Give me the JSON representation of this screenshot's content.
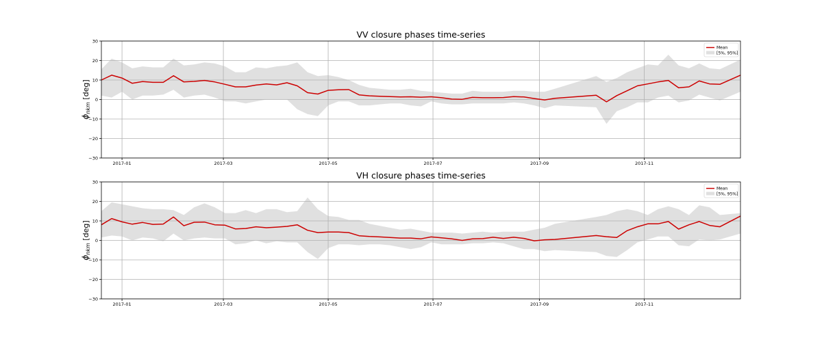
{
  "chart_data": [
    {
      "type": "line",
      "title": "VV closure phases time-series",
      "ylabel": "ϕnkm [deg]",
      "ylabel_main": "ϕ",
      "ylabel_sub": "nkm",
      "ylabel_rest": " [deg]",
      "ylim": [
        -30,
        30
      ],
      "yticks": [
        -30,
        -20,
        -10,
        0,
        10,
        20,
        30
      ],
      "xlim": [
        "2016-12-20",
        "2017-12-27"
      ],
      "xticks": [
        "2017-01",
        "2017-03",
        "2017-05",
        "2017-07",
        "2017-09",
        "2017-11"
      ],
      "grid": true,
      "legend_position": "top-right",
      "legend": [
        "Mean",
        "[5%, 95%]"
      ],
      "colors": {
        "mean": "#cc0000",
        "band": "#e0e0e0"
      },
      "x": [
        "2016-12-20",
        "2016-12-26",
        "2017-01-01",
        "2017-01-07",
        "2017-01-13",
        "2017-01-19",
        "2017-01-25",
        "2017-01-31",
        "2017-02-06",
        "2017-02-12",
        "2017-02-18",
        "2017-02-24",
        "2017-03-02",
        "2017-03-08",
        "2017-03-14",
        "2017-03-20",
        "2017-03-26",
        "2017-04-01",
        "2017-04-07",
        "2017-04-13",
        "2017-04-19",
        "2017-04-25",
        "2017-05-01",
        "2017-05-07",
        "2017-05-13",
        "2017-05-19",
        "2017-05-25",
        "2017-05-31",
        "2017-06-06",
        "2017-06-12",
        "2017-06-18",
        "2017-06-24",
        "2017-06-30",
        "2017-07-06",
        "2017-07-12",
        "2017-07-18",
        "2017-07-24",
        "2017-07-30",
        "2017-08-05",
        "2017-08-11",
        "2017-08-17",
        "2017-08-23",
        "2017-08-29",
        "2017-09-04",
        "2017-09-10",
        "2017-10-04",
        "2017-10-10",
        "2017-10-16",
        "2017-10-22",
        "2017-10-28",
        "2017-11-03",
        "2017-11-09",
        "2017-11-15",
        "2017-11-21",
        "2017-11-27",
        "2017-12-03",
        "2017-12-09",
        "2017-12-15",
        "2017-12-27"
      ],
      "series": [
        {
          "name": "Mean",
          "values": [
            10,
            12.5,
            11,
            8.3,
            9.2,
            8.8,
            8.8,
            12.2,
            9,
            9.3,
            9.8,
            9,
            7.8,
            6.5,
            6.5,
            7.4,
            8,
            7.5,
            8.6,
            7,
            3.5,
            2.8,
            4.7,
            5,
            5.1,
            2.4,
            1.9,
            1.7,
            1.5,
            1.3,
            1.4,
            1.2,
            1.4,
            0.9,
            0.2,
            0.1,
            1.1,
            0.9,
            0.9,
            1,
            1.5,
            1.3,
            0.5,
            -0.2,
            0.6,
            2.2,
            -1.2,
            2,
            4.5,
            7,
            8,
            9,
            9.8,
            6,
            6.5,
            9.5,
            8,
            7.8,
            12.5
          ]
        },
        {
          "name": "[5%, 95%]",
          "upper": [
            15.5,
            21,
            19,
            16,
            17,
            16.5,
            16.5,
            21,
            17.5,
            18,
            19,
            18.5,
            17,
            14,
            14,
            16.5,
            16,
            17,
            17.5,
            19,
            14,
            12,
            12.5,
            11.5,
            10,
            7.5,
            6,
            5.5,
            5,
            5,
            5.5,
            4.5,
            4,
            3.5,
            3,
            3,
            4.5,
            4,
            4,
            4,
            4.5,
            4.5,
            4,
            4,
            5.5,
            12,
            9,
            11,
            14,
            16,
            18,
            17.5,
            23,
            17.5,
            16,
            18.5,
            16,
            15.5,
            20.5
          ],
          "lower": [
            2,
            1,
            4,
            0,
            2,
            2,
            2.5,
            5,
            1,
            2,
            2.5,
            1,
            -1,
            -1,
            -2,
            -1,
            0,
            0,
            0,
            -5,
            -7.5,
            -8.5,
            -3,
            -1,
            -1,
            -3,
            -3,
            -2.5,
            -2,
            -2,
            -3,
            -3.5,
            -1,
            -2,
            -2.5,
            -2.5,
            -2,
            -2,
            -2,
            -2,
            -1.5,
            -2,
            -3,
            -4.5,
            -3,
            -4,
            -12.5,
            -6,
            -4,
            -1.5,
            -1.5,
            1,
            2,
            -1.5,
            -0.5,
            2.5,
            1,
            -0.5,
            4
          ]
        }
      ]
    },
    {
      "type": "line",
      "title": "VH closure phases time-series",
      "ylabel": "ϕnkm [deg]",
      "ylabel_main": "ϕ",
      "ylabel_sub": "nkm",
      "ylabel_rest": " [deg]",
      "ylim": [
        -30,
        30
      ],
      "yticks": [
        -30,
        -20,
        -10,
        0,
        10,
        20,
        30
      ],
      "xlim": [
        "2016-12-20",
        "2017-12-27"
      ],
      "xticks": [
        "2017-01",
        "2017-03",
        "2017-05",
        "2017-07",
        "2017-09",
        "2017-11"
      ],
      "grid": true,
      "legend_position": "top-right",
      "legend": [
        "Mean",
        "[5%, 95%]"
      ],
      "colors": {
        "mean": "#cc0000",
        "band": "#e0e0e0"
      },
      "x": [
        "2016-12-20",
        "2016-12-26",
        "2017-01-01",
        "2017-01-07",
        "2017-01-13",
        "2017-01-19",
        "2017-01-25",
        "2017-01-31",
        "2017-02-06",
        "2017-02-12",
        "2017-02-18",
        "2017-02-24",
        "2017-03-02",
        "2017-03-08",
        "2017-03-14",
        "2017-03-20",
        "2017-03-26",
        "2017-04-01",
        "2017-04-07",
        "2017-04-13",
        "2017-04-19",
        "2017-04-25",
        "2017-05-01",
        "2017-05-07",
        "2017-05-13",
        "2017-05-19",
        "2017-05-25",
        "2017-05-31",
        "2017-06-06",
        "2017-06-12",
        "2017-06-18",
        "2017-06-24",
        "2017-06-30",
        "2017-07-06",
        "2017-07-12",
        "2017-07-18",
        "2017-07-24",
        "2017-07-30",
        "2017-08-05",
        "2017-08-11",
        "2017-08-17",
        "2017-08-23",
        "2017-08-29",
        "2017-09-04",
        "2017-09-10",
        "2017-10-04",
        "2017-10-10",
        "2017-10-16",
        "2017-10-22",
        "2017-10-28",
        "2017-11-03",
        "2017-11-09",
        "2017-11-15",
        "2017-11-21",
        "2017-11-27",
        "2017-12-03",
        "2017-12-09",
        "2017-12-15",
        "2017-12-27"
      ],
      "series": [
        {
          "name": "Mean",
          "values": [
            8,
            11.2,
            9.5,
            8.3,
            9.2,
            8.2,
            8.4,
            12,
            7.5,
            9.3,
            9.4,
            8,
            7.8,
            5.9,
            6.1,
            7,
            6.5,
            6.8,
            7.2,
            8,
            5.2,
            4,
            4.3,
            4.3,
            4,
            2.4,
            2,
            1.8,
            1.5,
            1.2,
            1.2,
            0.8,
            1.8,
            1.3,
            0.8,
            0,
            0.8,
            0.9,
            1.6,
            1,
            1.6,
            1,
            -0.2,
            0.3,
            0.5,
            2.5,
            1.9,
            1.5,
            5,
            7,
            8.5,
            8.5,
            9.7,
            5.8,
            8,
            9.7,
            7.7,
            7,
            12.5
          ]
        },
        {
          "name": "[5%, 95%]",
          "upper": [
            15,
            19.5,
            18.5,
            17.5,
            16.5,
            16,
            16,
            15.5,
            13,
            17,
            19,
            17,
            14,
            14,
            15.5,
            14,
            16,
            16,
            14.5,
            15,
            22,
            16,
            12.5,
            12,
            10.5,
            10.5,
            8.5,
            7.5,
            6.5,
            5.5,
            6,
            5,
            4,
            4,
            4,
            3.5,
            4,
            4.5,
            4,
            4.5,
            4.5,
            4.5,
            5.5,
            6.5,
            8.5,
            12,
            13,
            15,
            16,
            15,
            13,
            16,
            17.5,
            16,
            13,
            18,
            17,
            13,
            14
          ]
        }
      ]
    }
  ]
}
